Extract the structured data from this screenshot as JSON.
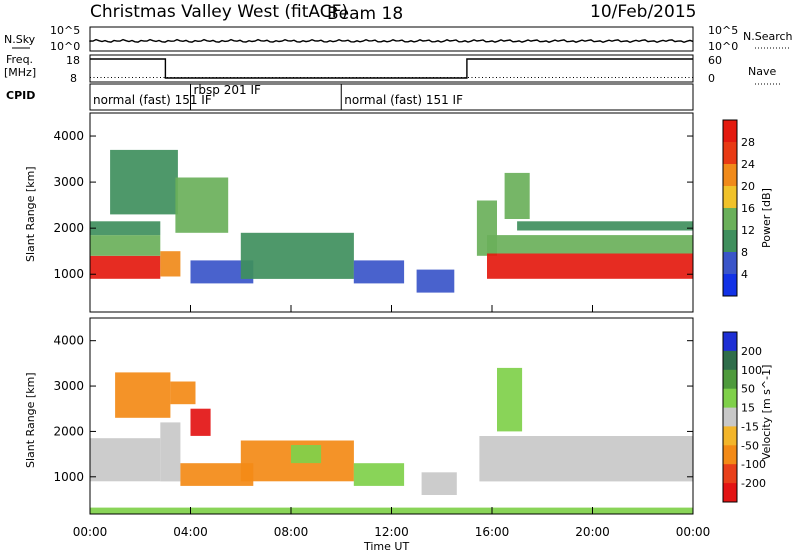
{
  "header": {
    "radar_title": "Christmas Valley West (fitACF)",
    "beam": "Beam 18",
    "date": "10/Feb/2015"
  },
  "nsky_panel": {
    "left_label": "N.Sky",
    "left_ticks": [
      "10^5",
      "10^0"
    ],
    "right_ticks": [
      "10^5",
      "10^0"
    ],
    "right_label": "N.Search"
  },
  "freq_panel": {
    "left_label_1": "Freq.",
    "left_label_2": "[MHz]",
    "left_ticks": [
      "18",
      "8"
    ],
    "right_ticks": [
      "60",
      "0"
    ],
    "right_label": "Nave",
    "freq_steps_mhz": [
      {
        "t0": 0.0,
        "t1": 3.0,
        "v": 16.5
      },
      {
        "t0": 3.0,
        "t1": 15.0,
        "v": 9.5
      },
      {
        "t0": 15.0,
        "t1": 24.0,
        "v": 16.5
      }
    ],
    "nave_level": 10
  },
  "cpid_panel": {
    "label": "CPID",
    "modes": [
      {
        "start": 0.0,
        "text": "normal (fast) 151 IF"
      },
      {
        "start": 4.0,
        "text": "rbsp 201 IF"
      },
      {
        "start": 10.0,
        "text": "normal (fast) 151 IF"
      }
    ]
  },
  "axes": {
    "y_label": "Slant Range [km]",
    "y_ticks": [
      "1000",
      "2000",
      "3000",
      "4000"
    ],
    "x_ticks": [
      "00:00",
      "04:00",
      "08:00",
      "12:00",
      "16:00",
      "20:00",
      "00:00"
    ],
    "x_label": "Time UT"
  },
  "power_colorbar": {
    "label": "Power [dB]",
    "ticks": [
      "4",
      "8",
      "12",
      "16",
      "20",
      "24",
      "28"
    ],
    "colors": [
      "#1232e6",
      "#3a55c9",
      "#3f8f5d",
      "#6ab05a",
      "#f0c22a",
      "#f08a1a",
      "#e83a14",
      "#e41a0f"
    ]
  },
  "velocity_colorbar": {
    "label": "Velocity [m s^-1]",
    "ticks": [
      "200",
      "100",
      "50",
      "15",
      "-15",
      "-50",
      "-100",
      "-200"
    ],
    "colors": [
      "#1e2fd4",
      "#2f6d4a",
      "#4e9a3c",
      "#7fd04a",
      "#c8c8c8",
      "#f3b52a",
      "#f38a16",
      "#e8401a",
      "#e31414"
    ]
  },
  "chart_data": {
    "type": "heatmap",
    "x_range_hours": [
      0,
      24
    ],
    "y_range_km": [
      180,
      4500
    ],
    "panels": [
      {
        "quantity": "power",
        "regions": [
          {
            "t0": 0.0,
            "t1": 2.8,
            "r0": 900,
            "r1": 1400,
            "level": 28
          },
          {
            "t0": 0.0,
            "t1": 2.8,
            "r0": 1400,
            "r1": 1850,
            "level": 12
          },
          {
            "t0": 0.0,
            "t1": 2.8,
            "r0": 1850,
            "r1": 2150,
            "level": 8
          },
          {
            "t0": 0.8,
            "t1": 3.5,
            "r0": 2300,
            "r1": 3700,
            "level": 8
          },
          {
            "t0": 2.8,
            "t1": 3.6,
            "r0": 950,
            "r1": 1500,
            "level": 20
          },
          {
            "t0": 3.4,
            "t1": 5.5,
            "r0": 1900,
            "r1": 3100,
            "level": 12
          },
          {
            "t0": 4.0,
            "t1": 6.5,
            "r0": 800,
            "r1": 1300,
            "level": 6
          },
          {
            "t0": 6.0,
            "t1": 10.5,
            "r0": 900,
            "r1": 1900,
            "level": 10
          },
          {
            "t0": 10.5,
            "t1": 12.5,
            "r0": 800,
            "r1": 1300,
            "level": 6
          },
          {
            "t0": 13.0,
            "t1": 14.5,
            "r0": 600,
            "r1": 1100,
            "level": 6
          },
          {
            "t0": 15.4,
            "t1": 16.2,
            "r0": 1400,
            "r1": 2600,
            "level": 12
          },
          {
            "t0": 15.8,
            "t1": 24.0,
            "r0": 900,
            "r1": 1450,
            "level": 28
          },
          {
            "t0": 15.8,
            "t1": 24.0,
            "r0": 1450,
            "r1": 1850,
            "level": 12
          },
          {
            "t0": 17.0,
            "t1": 24.0,
            "r0": 1950,
            "r1": 2150,
            "level": 10
          },
          {
            "t0": 16.5,
            "t1": 17.5,
            "r0": 2200,
            "r1": 3200,
            "level": 12
          }
        ]
      },
      {
        "quantity": "velocity",
        "regions": [
          {
            "t0": 0.0,
            "t1": 2.8,
            "r0": 900,
            "r1": 1850,
            "level": 0
          },
          {
            "t0": 2.8,
            "t1": 3.6,
            "r0": 900,
            "r1": 2200,
            "level": 0
          },
          {
            "t0": 1.0,
            "t1": 3.2,
            "r0": 2300,
            "r1": 3300,
            "level": -50
          },
          {
            "t0": 3.2,
            "t1": 4.2,
            "r0": 2600,
            "r1": 3100,
            "level": -60
          },
          {
            "t0": 4.0,
            "t1": 4.8,
            "r0": 1900,
            "r1": 2500,
            "level": -200
          },
          {
            "t0": 3.6,
            "t1": 6.5,
            "r0": 800,
            "r1": 1300,
            "level": -60
          },
          {
            "t0": 6.0,
            "t1": 10.5,
            "r0": 900,
            "r1": 1800,
            "level": -40
          },
          {
            "t0": 8.0,
            "t1": 9.2,
            "r0": 1300,
            "r1": 1700,
            "level": 20
          },
          {
            "t0": 10.5,
            "t1": 12.5,
            "r0": 800,
            "r1": 1300,
            "level": 20
          },
          {
            "t0": 13.2,
            "t1": 14.6,
            "r0": 600,
            "r1": 1100,
            "level": 0
          },
          {
            "t0": 15.5,
            "t1": 24.0,
            "r0": 900,
            "r1": 1900,
            "level": 0
          },
          {
            "t0": 16.2,
            "t1": 17.2,
            "r0": 2000,
            "r1": 3400,
            "level": 20
          },
          {
            "t0": 0.0,
            "t1": 24.0,
            "r0": 180,
            "r1": 320,
            "level": 20
          }
        ]
      }
    ]
  }
}
